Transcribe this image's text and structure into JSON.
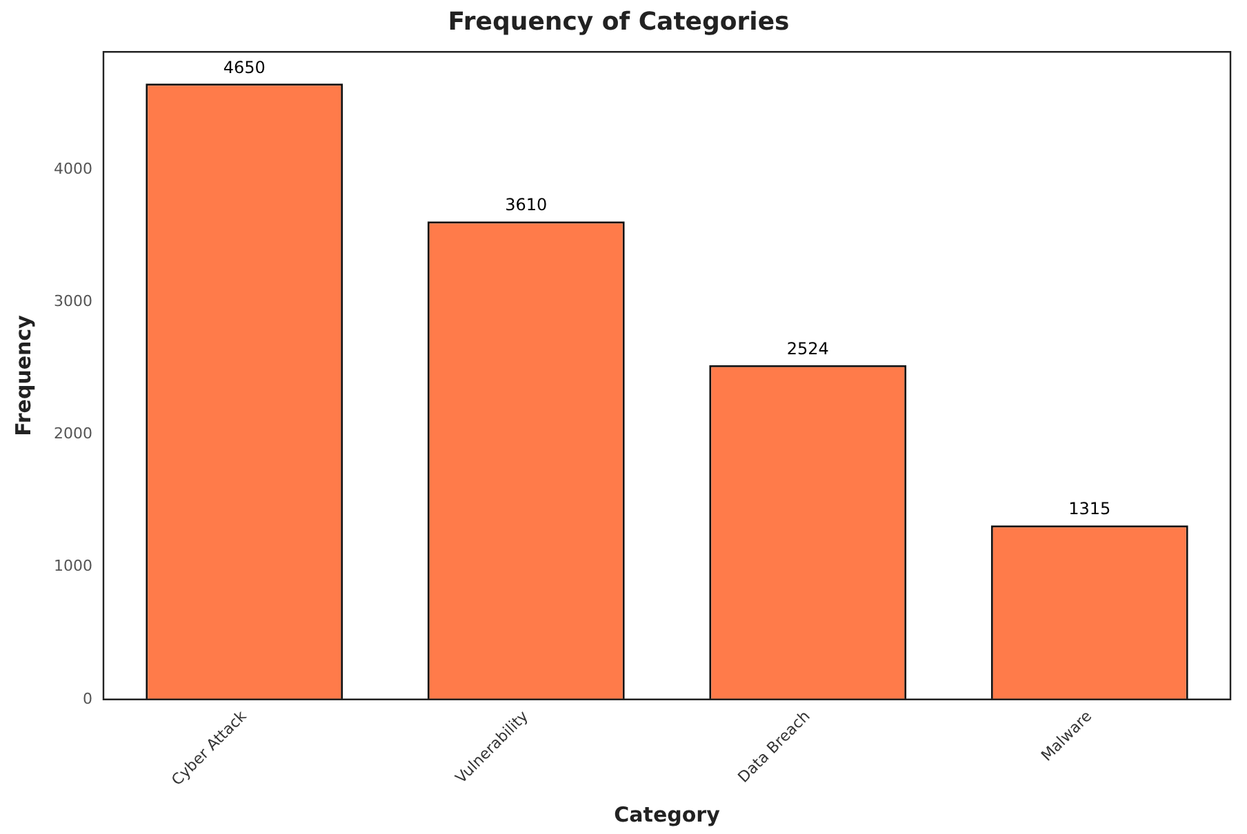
{
  "chart_data": {
    "type": "bar",
    "title": "Frequency of Categories",
    "xlabel": "Category",
    "ylabel": "Frequency",
    "categories": [
      "Cyber Attack",
      "Vulnerability",
      "Data Breach",
      "Malware"
    ],
    "values": [
      4650,
      3610,
      2524,
      1315
    ],
    "color": "#ff7b4a",
    "ylim": [
      0,
      4890
    ],
    "yticks": [
      0,
      1000,
      2000,
      3000,
      4000
    ],
    "grid": false,
    "legend": false,
    "data_labels": true
  }
}
